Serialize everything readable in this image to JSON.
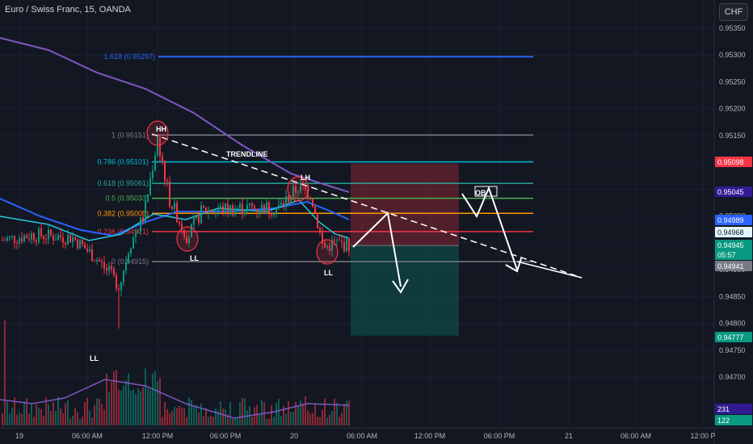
{
  "header": {
    "title": "Euro / Swiss Franc, 15, OANDA",
    "currency_button": "CHF"
  },
  "chart_data": {
    "type": "candlestick",
    "symbol": "Euro / Swiss Franc",
    "interval": "15",
    "exchange": "OANDA",
    "ylim": [
      0.9462,
      0.9537
    ],
    "y_ticks": [
      0.9535,
      0.953,
      0.9525,
      0.952,
      0.9515,
      0.951,
      0.9505,
      0.95,
      0.9495,
      0.949,
      0.9485,
      0.948,
      0.9475,
      0.947
    ],
    "y_tick_labels": [
      "0.95350",
      "0.95300",
      "0.95250",
      "0.95200",
      "0.95150",
      "0.95100",
      "0.95050",
      "0.95000",
      "0.94950",
      "0.94900",
      "0.94850",
      "0.94800",
      "0.94750",
      "0.94700"
    ],
    "x_ticks": [
      "19",
      "06:00 AM",
      "12:00 PM",
      "06:00 PM",
      "20",
      "06:00 AM",
      "12:00 PM",
      "06:00 PM",
      "21",
      "06:00 AM",
      "12:00 P"
    ],
    "fib_levels": [
      {
        "ratio": "1.618",
        "value": 0.95297,
        "label": "1.618 (0.95297)",
        "color": "#2962ff"
      },
      {
        "ratio": "1",
        "value": 0.95151,
        "label": "1 (0.95151)",
        "color": "#787b86"
      },
      {
        "ratio": "0.786",
        "value": 0.95101,
        "label": "0.786 (0.95101)",
        "color": "#00bcd4"
      },
      {
        "ratio": "0.618",
        "value": 0.95061,
        "label": "0.618 (0.95061)",
        "color": "#26a69a"
      },
      {
        "ratio": "0.5",
        "value": 0.95033,
        "label": "0.5 (0.95033)",
        "color": "#4caf50"
      },
      {
        "ratio": "0.382",
        "value": 0.95005,
        "label": "0.382 (0.95005)",
        "color": "#ff9800"
      },
      {
        "ratio": "0.236",
        "value": 0.94971,
        "label": "0.236 (0.94971)",
        "color": "#f23645"
      },
      {
        "ratio": "0",
        "value": 0.94915,
        "label": "0 (0.94915)",
        "color": "#787b86"
      }
    ],
    "annotations": [
      "HH",
      "TRENDLINE",
      "LH",
      "LL",
      "LL",
      "LL",
      "OB"
    ],
    "price_badges": [
      {
        "value": "0.95098",
        "bg": "#f23645",
        "fg": "#ffffff"
      },
      {
        "value": "0.95045",
        "bg": "#311b92",
        "fg": "#ffffff"
      },
      {
        "value": "0.94989",
        "bg": "#2962ff",
        "fg": "#ffffff"
      },
      {
        "value": "0.94968",
        "bg": "#e1f5fe",
        "fg": "#131722"
      },
      {
        "value": "0.94945",
        "bg": "#089981",
        "fg": "#ffffff"
      },
      {
        "value": "05:57",
        "bg": "#089981",
        "fg": "#ffffff"
      },
      {
        "value": "0.94941",
        "bg": "#787b86",
        "fg": "#ffffff"
      },
      {
        "value": "0.94777",
        "bg": "#089981",
        "fg": "#ffffff"
      },
      {
        "value": "231",
        "bg": "#311b92",
        "fg": "#ffffff"
      },
      {
        "value": "122",
        "bg": "#089981",
        "fg": "#ffffff"
      }
    ],
    "position": {
      "entry": 0.94945,
      "stop": 0.95098,
      "target": 0.94777
    },
    "colors": {
      "up": "#089981",
      "down": "#f23645",
      "ma_slow": "#7e57c2",
      "ma_mid": "#2962ff",
      "ma_fast": "#26c6da",
      "background": "#131722"
    }
  }
}
